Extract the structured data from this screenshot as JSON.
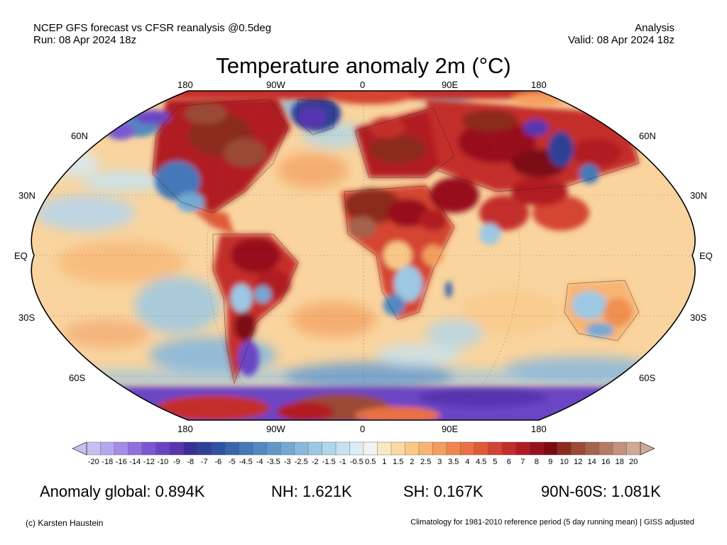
{
  "header": {
    "left_line1": "NCEP GFS forecast vs CFSR reanalysis @0.5deg",
    "left_line2": "Run: 08 Apr 2024 18z",
    "right_line1": "Analysis",
    "right_line2": "Valid: 08 Apr 2024 18z"
  },
  "title": "Temperature anomaly 2m (°C)",
  "lon_labels": [
    "180",
    "90W",
    "0",
    "90E",
    "180"
  ],
  "lat_labels": [
    "60N",
    "30N",
    "EQ",
    "30S",
    "60S"
  ],
  "colorbar": {
    "ticks": [
      "-20",
      "-18",
      "-16",
      "-14",
      "-12",
      "-10",
      "-9",
      "-8",
      "-7",
      "-6",
      "-5",
      "-4.5",
      "-4",
      "-3.5",
      "-3",
      "-2.5",
      "-2",
      "-1.5",
      "-1",
      "-0.5",
      "0.5",
      "1",
      "1.5",
      "2",
      "2.5",
      "3",
      "3.5",
      "4",
      "4.5",
      "5",
      "6",
      "7",
      "8",
      "9",
      "10",
      "12",
      "14",
      "16",
      "18",
      "20"
    ],
    "colors": [
      "#c6bff0",
      "#b7a7ee",
      "#a58ce8",
      "#9070de",
      "#7b58d2",
      "#6a44c4",
      "#5935b0",
      "#3a2f96",
      "#2e3f96",
      "#2f52a2",
      "#3866ae",
      "#4478b8",
      "#5288c0",
      "#6298c8",
      "#74a8d2",
      "#88b8dc",
      "#9cc8e4",
      "#b0d6ea",
      "#c6e2f0",
      "#dcecf4",
      "#f2f2f2",
      "#fbe8c0",
      "#fbd9a2",
      "#f9c888",
      "#f7b472",
      "#f49e5e",
      "#f0864e",
      "#e97044",
      "#e05a3a",
      "#d44432",
      "#c42e2a",
      "#b01c24",
      "#98101c",
      "#7c0a12",
      "#8c2c1e",
      "#9a4a36",
      "#a6624c",
      "#b47a64",
      "#c2927c",
      "#d0aa96"
    ]
  },
  "stats": {
    "global": "Anomaly global: 0.894K",
    "nh": "NH: 1.621K",
    "sh": "SH: 0.167K",
    "arctic": "90N-60S: 1.081K"
  },
  "footer": {
    "left": "(c) Karsten Haustein",
    "right": "Climatology for 1981-2010 reference period (5 day running mean) | GISS adjusted"
  }
}
